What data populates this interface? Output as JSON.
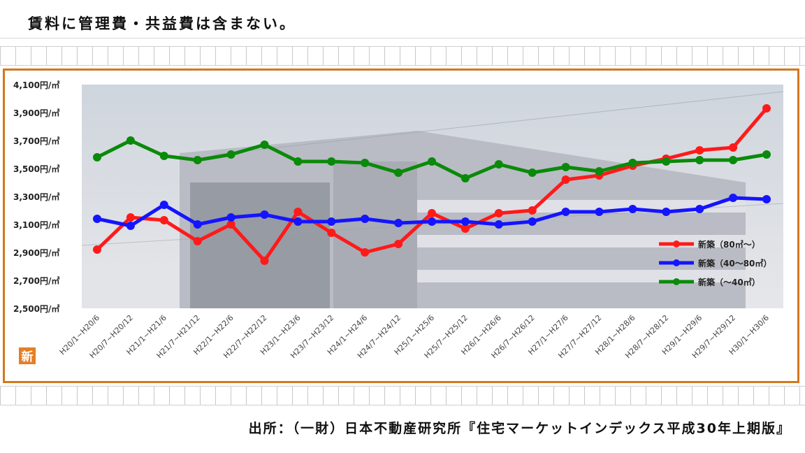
{
  "page": {
    "heading": "賃料に管理費・共益費は含まない。",
    "source": "出所：（一財）日本不動産研究所『住宅マーケットインデックス平成30年上期版』",
    "badge": "新"
  },
  "chart_data": {
    "type": "line",
    "ylim": [
      2500,
      4100
    ],
    "yticks": [
      {
        "v": 2500,
        "label": "2,500円/㎡"
      },
      {
        "v": 2700,
        "label": "2,700円/㎡"
      },
      {
        "v": 2900,
        "label": "2,900円/㎡"
      },
      {
        "v": 3100,
        "label": "3,100円/㎡"
      },
      {
        "v": 3300,
        "label": "3,300円/㎡"
      },
      {
        "v": 3500,
        "label": "3,500円/㎡"
      },
      {
        "v": 3700,
        "label": "3,700円/㎡"
      },
      {
        "v": 3900,
        "label": "3,900円/㎡"
      },
      {
        "v": 4100,
        "label": "4,100円/㎡"
      }
    ],
    "categories": [
      "H20/1~H20/6",
      "H20/7~H20/12",
      "H21/1~H21/6",
      "H21/7~H21/12",
      "H22/1~H22/6",
      "H22/7~H22/12",
      "H23/1~H23/6",
      "H23/7~H23/12",
      "H24/1~H24/6",
      "H24/7~H24/12",
      "H25/1~H25/6",
      "H25/7~H25/12",
      "H26/1~H26/6",
      "H26/7~H26/12",
      "H27/1~H27/6",
      "H27/7~H27/12",
      "H28/1~H28/6",
      "H28/7~H28/12",
      "H29/1~H29/6",
      "H29/7~H29/12",
      "H30/1~H30/6"
    ],
    "series": [
      {
        "name": "新築（80㎡～）",
        "color": "#ff1a1a",
        "values": [
          2920,
          3150,
          3130,
          2980,
          3100,
          2840,
          3190,
          3040,
          2900,
          2960,
          3180,
          3070,
          3180,
          3200,
          3420,
          3450,
          3520,
          3570,
          3630,
          3650,
          3930
        ]
      },
      {
        "name": "新築（40～80㎡）",
        "color": "#1414ff",
        "values": [
          3140,
          3090,
          3240,
          3100,
          3150,
          3170,
          3120,
          3120,
          3140,
          3110,
          3120,
          3120,
          3100,
          3120,
          3190,
          3190,
          3210,
          3190,
          3210,
          3290,
          3280
        ]
      },
      {
        "name": "新築（～40㎡）",
        "color": "#0a8a0a",
        "values": [
          3580,
          3700,
          3590,
          3560,
          3600,
          3670,
          3550,
          3550,
          3540,
          3470,
          3550,
          3430,
          3530,
          3470,
          3510,
          3480,
          3540,
          3550,
          3560,
          3560,
          3600
        ]
      }
    ],
    "legend_position": "right"
  }
}
